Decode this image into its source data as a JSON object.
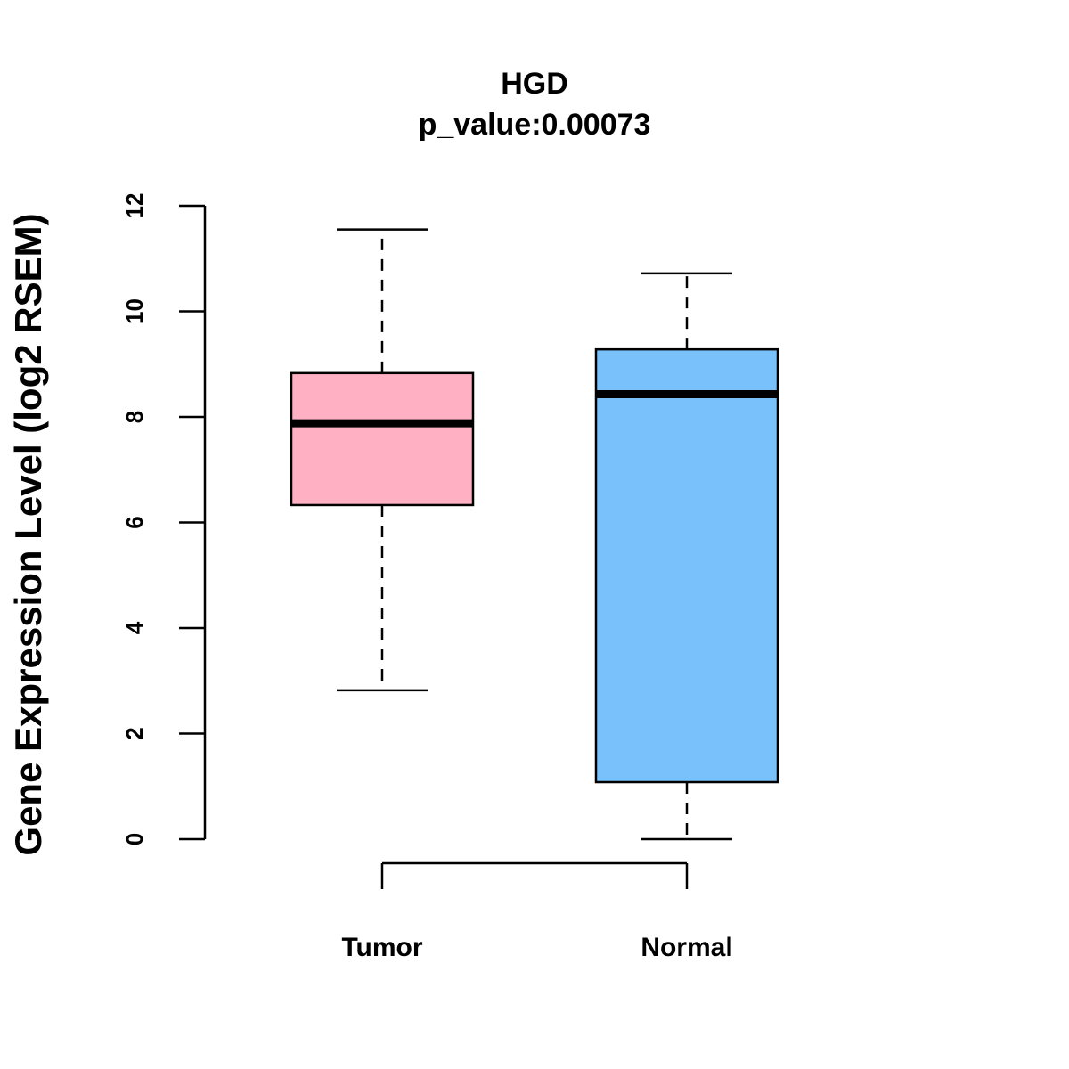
{
  "chart_data": {
    "type": "boxplot",
    "title": "HGD",
    "subtitle": "p_value:0.00073",
    "xlabel": "",
    "ylabel": "Gene Expression Level (log2 RSEM)",
    "ylim": [
      0,
      12
    ],
    "yticks": [
      "0",
      "2",
      "4",
      "6",
      "8",
      "10",
      "12"
    ],
    "grid": false,
    "categories": [
      "Tumor",
      "Normal"
    ],
    "boxes": [
      {
        "name": "Tumor",
        "min": 2.82,
        "q1": 6.33,
        "median": 7.88,
        "q3": 8.83,
        "max": 11.55,
        "color": "#FFB1C3"
      },
      {
        "name": "Normal",
        "min": 0.0,
        "q1": 1.08,
        "median": 8.43,
        "q3": 9.28,
        "max": 10.72,
        "color": "#78C1FA"
      }
    ],
    "comparison_bracket": [
      "Tumor",
      "Normal"
    ]
  }
}
